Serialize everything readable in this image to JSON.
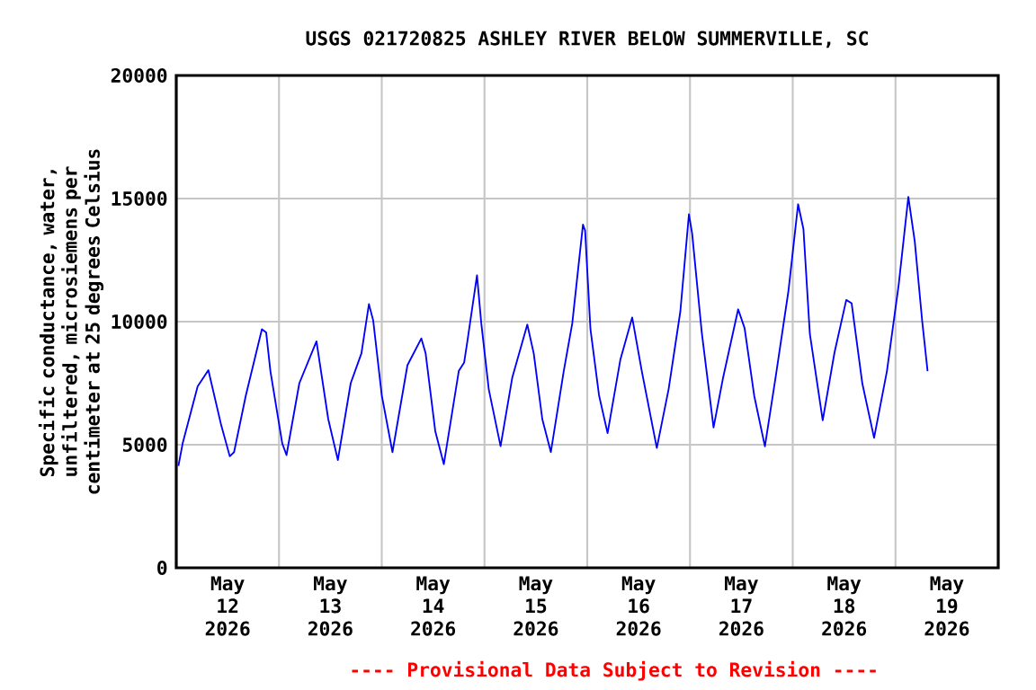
{
  "chart_data": {
    "type": "line",
    "title": "USGS 021720825 ASHLEY RIVER BELOW SUMMERVILLE, SC",
    "ylabel": "Specific conductance, water, unfiltered, microsiemens per centimeter at 25 degrees Celsius",
    "annotations": [
      "---- Provisional Data Subject to Revision ----"
    ],
    "xlim": [
      "2026-05-12T00:00",
      "2026-05-20T00:00"
    ],
    "xticks": [
      {
        "value": "2026-05-12T12:00",
        "label": "May 12 2026"
      },
      {
        "value": "2026-05-13T12:00",
        "label": "May 13 2026"
      },
      {
        "value": "2026-05-14T12:00",
        "label": "May 14 2026"
      },
      {
        "value": "2026-05-15T12:00",
        "label": "May 15 2026"
      },
      {
        "value": "2026-05-16T12:00",
        "label": "May 16 2026"
      },
      {
        "value": "2026-05-17T12:00",
        "label": "May 17 2026"
      },
      {
        "value": "2026-05-18T12:00",
        "label": "May 18 2026"
      },
      {
        "value": "2026-05-19T12:00",
        "label": "May 19 2026"
      },
      {
        "value": "2026-05-13T00:00",
        "label": null
      },
      {
        "value": "2026-05-14T00:00",
        "label": null
      },
      {
        "value": "2026-05-15T00:00",
        "label": null
      },
      {
        "value": "2026-05-16T00:00",
        "label": null
      },
      {
        "value": "2026-05-17T00:00",
        "label": null
      },
      {
        "value": "2026-05-18T00:00",
        "label": null
      },
      {
        "value": "2026-05-19T00:00",
        "label": null
      }
    ],
    "ylim": [
      0,
      20000
    ],
    "yticks": [
      0,
      5000,
      10000,
      15000,
      20000
    ],
    "grid": true,
    "marker": "none",
    "line_style": "solid",
    "series": [
      {
        "color": "#0000ff",
        "x": [
          "2026-05-12T00:30",
          "2026-05-12T01:30",
          "2026-05-12T05:00",
          "2026-05-12T07:30",
          "2026-05-12T10:30",
          "2026-05-12T12:30",
          "2026-05-12T13:30",
          "2026-05-12T16:15",
          "2026-05-12T20:00",
          "2026-05-12T21:00",
          "2026-05-12T22:00",
          "2026-05-13T00:45",
          "2026-05-13T01:45",
          "2026-05-13T04:45",
          "2026-05-13T08:45",
          "2026-05-13T11:30",
          "2026-05-13T13:45",
          "2026-05-13T16:45",
          "2026-05-13T19:15",
          "2026-05-13T21:00",
          "2026-05-13T22:00",
          "2026-05-14T00:00",
          "2026-05-14T02:30",
          "2026-05-14T06:00",
          "2026-05-14T09:15",
          "2026-05-14T10:15",
          "2026-05-14T12:30",
          "2026-05-14T14:30",
          "2026-05-14T18:00",
          "2026-05-14T19:15",
          "2026-05-14T20:00",
          "2026-05-14T22:15",
          "2026-05-14T23:15",
          "2026-05-15T01:00",
          "2026-05-15T03:45",
          "2026-05-15T06:30",
          "2026-05-15T10:00",
          "2026-05-15T11:30",
          "2026-05-15T13:30",
          "2026-05-15T15:30",
          "2026-05-15T18:30",
          "2026-05-15T20:30",
          "2026-05-15T23:00",
          "2026-05-15T23:30",
          "2026-05-16T00:45",
          "2026-05-16T02:45",
          "2026-05-16T04:45",
          "2026-05-16T07:45",
          "2026-05-16T10:30",
          "2026-05-16T12:45",
          "2026-05-16T16:15",
          "2026-05-16T19:00",
          "2026-05-16T21:45",
          "2026-05-16T23:45",
          "2026-05-17T00:30",
          "2026-05-17T02:45",
          "2026-05-17T05:30",
          "2026-05-17T07:45",
          "2026-05-17T11:15",
          "2026-05-17T12:45",
          "2026-05-17T15:00",
          "2026-05-17T17:30",
          "2026-05-17T20:00",
          "2026-05-17T23:00",
          "2026-05-18T01:15",
          "2026-05-18T02:30",
          "2026-05-18T04:00",
          "2026-05-18T07:00",
          "2026-05-18T09:45",
          "2026-05-18T12:30",
          "2026-05-18T13:45",
          "2026-05-18T16:15",
          "2026-05-18T19:00",
          "2026-05-18T22:00",
          "2026-05-19T00:45",
          "2026-05-19T03:00",
          "2026-05-19T04:30",
          "2026-05-19T06:15",
          "2026-05-19T07:30"
        ],
        "values": [
          4140,
          5060,
          7370,
          8030,
          5790,
          4530,
          4700,
          7000,
          9690,
          9560,
          7980,
          5060,
          4580,
          7500,
          9200,
          6040,
          4380,
          7500,
          8710,
          10710,
          10050,
          7010,
          4700,
          8230,
          9320,
          8710,
          5550,
          4210,
          8000,
          8340,
          9200,
          11880,
          9930,
          7250,
          4940,
          7740,
          9880,
          8710,
          6040,
          4700,
          7980,
          9930,
          13940,
          13700,
          9690,
          7010,
          5470,
          8470,
          10170,
          7980,
          4870,
          7250,
          10420,
          14360,
          13580,
          9560,
          5700,
          7740,
          10500,
          9740,
          6990,
          4930,
          7740,
          11250,
          14770,
          13760,
          9500,
          5990,
          8740,
          10880,
          10750,
          7490,
          5280,
          7990,
          11500,
          15070,
          13260,
          10000,
          7990
        ]
      }
    ]
  }
}
